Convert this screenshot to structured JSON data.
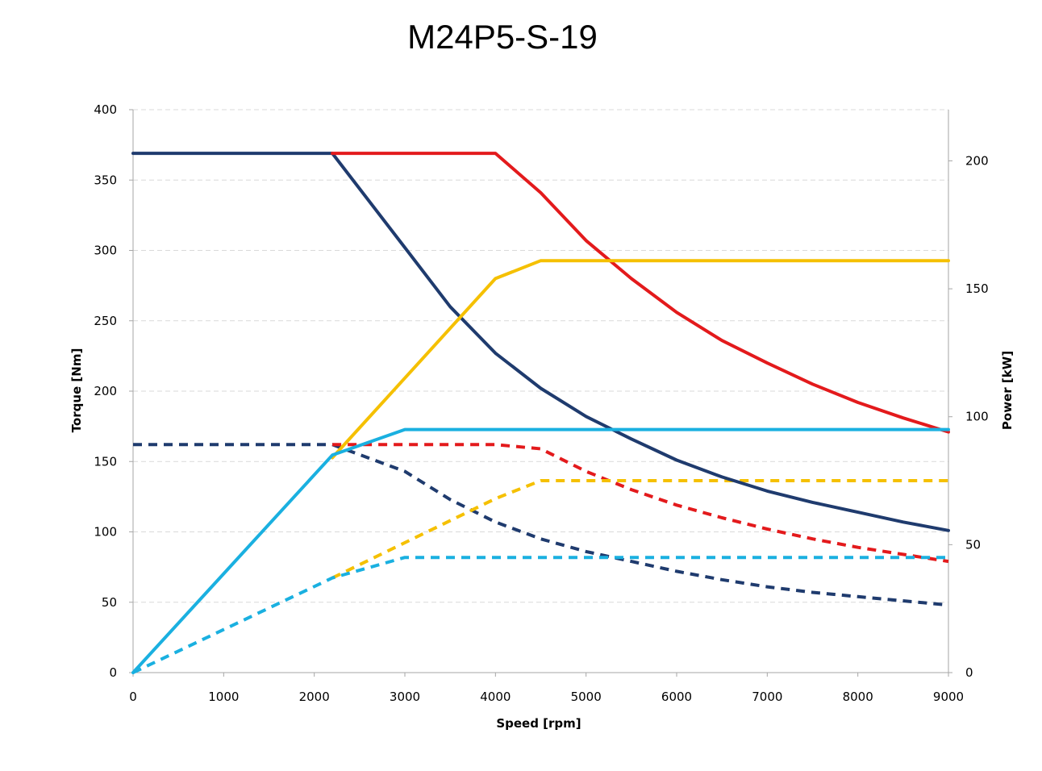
{
  "chart_data": {
    "type": "line",
    "title": "M24P5-S-19",
    "xlabel": "Speed [rpm]",
    "ylabel": "Torque [Nm]",
    "y2label": "Power [kW]",
    "xlim": [
      0,
      9000
    ],
    "ylim": [
      0,
      400
    ],
    "y2lim": [
      0,
      220
    ],
    "xticks": [
      0,
      1000,
      2000,
      3000,
      4000,
      5000,
      6000,
      7000,
      8000,
      9000
    ],
    "yticks": [
      0,
      50,
      100,
      150,
      200,
      250,
      300,
      350,
      400
    ],
    "y2ticks": [
      0,
      50,
      100,
      150,
      200
    ],
    "grid": "horizontal-dashed",
    "legend": "none",
    "series": [
      {
        "axis": "left",
        "color": "#1f3b6e",
        "style": "solid",
        "x": [
          0,
          2200,
          3000,
          3500,
          4000,
          4500,
          5000,
          5500,
          6000,
          6500,
          7000,
          7500,
          8000,
          8500,
          9000
        ],
        "y": [
          369,
          369,
          302,
          260,
          227,
          202,
          182,
          166,
          151,
          139,
          129,
          121,
          114,
          107,
          101
        ]
      },
      {
        "axis": "left",
        "color": "#1f3b6e",
        "style": "dashed",
        "x": [
          0,
          2200,
          3000,
          3500,
          4000,
          4500,
          5000,
          5500,
          6000,
          6500,
          7000,
          7500,
          8000,
          8500,
          9000
        ],
        "y": [
          162,
          162,
          143,
          123,
          107,
          95,
          86,
          79,
          72,
          66,
          61,
          57,
          54,
          51,
          48
        ]
      },
      {
        "axis": "left",
        "color": "#e31a1c",
        "style": "solid",
        "x": [
          2200,
          4000,
          4500,
          5000,
          5500,
          6000,
          6500,
          7000,
          7500,
          8000,
          8500,
          9000
        ],
        "y": [
          369,
          369,
          341,
          307,
          280,
          256,
          236,
          220,
          205,
          192,
          181,
          171
        ]
      },
      {
        "axis": "left",
        "color": "#e31a1c",
        "style": "dashed",
        "x": [
          2200,
          4000,
          4500,
          5000,
          5500,
          6000,
          6500,
          7000,
          7500,
          8000,
          8500,
          9000
        ],
        "y": [
          162,
          162,
          159,
          143,
          130,
          119,
          110,
          102,
          95,
          89,
          84,
          79
        ]
      },
      {
        "axis": "right",
        "color": "#f5c000",
        "style": "solid",
        "x": [
          2200,
          4000,
          4500,
          9000
        ],
        "y": [
          84,
          154,
          161,
          161
        ]
      },
      {
        "axis": "right",
        "color": "#f5c000",
        "style": "dashed",
        "x": [
          2200,
          4000,
          4500,
          9000
        ],
        "y": [
          37,
          68,
          75,
          75
        ]
      },
      {
        "axis": "right",
        "color": "#1ab0e0",
        "style": "solid",
        "x": [
          0,
          2200,
          3000,
          9000
        ],
        "y": [
          0,
          85,
          95,
          95
        ]
      },
      {
        "axis": "right",
        "color": "#1ab0e0",
        "style": "dashed",
        "x": [
          0,
          2200,
          3000,
          9000
        ],
        "y": [
          0,
          37,
          45,
          45
        ]
      }
    ]
  }
}
